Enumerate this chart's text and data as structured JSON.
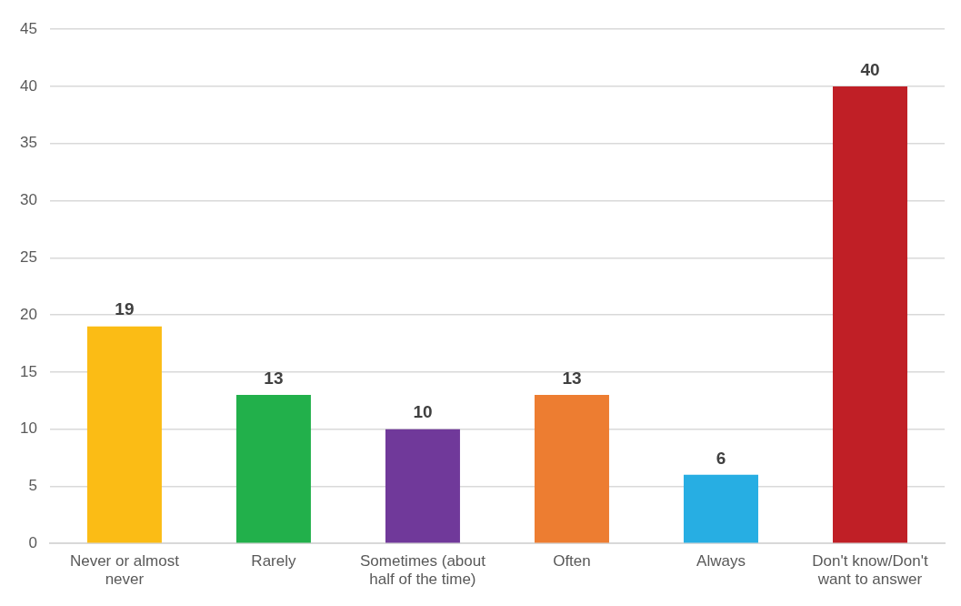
{
  "chart_data": {
    "type": "bar",
    "categories": [
      "Never or almost never",
      "Rarely",
      "Sometimes (about half of the time)",
      "Often",
      "Always",
      "Don't know/Don't want to answer"
    ],
    "values": [
      19,
      13,
      10,
      13,
      6,
      40
    ],
    "colors": [
      "#fbbc15",
      "#22b04b",
      "#70399a",
      "#ed7d31",
      "#27aee3",
      "#c01f26"
    ],
    "ylim": [
      0,
      45
    ],
    "yticks": [
      0,
      5,
      10,
      15,
      20,
      25,
      30,
      35,
      40,
      45
    ],
    "grid": "y",
    "data_labels": true,
    "legend": false
  }
}
